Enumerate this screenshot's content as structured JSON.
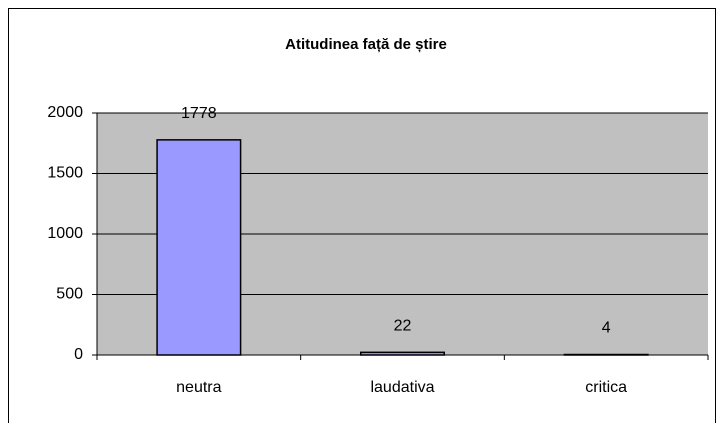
{
  "chart_data": {
    "type": "bar",
    "title": "Atitudinea față de știre",
    "categories": [
      "neutra",
      "laudativa",
      "critica"
    ],
    "values": [
      1778,
      22,
      4
    ],
    "color": "#9999ff",
    "ylim": [
      0,
      2000
    ],
    "yticks": [
      0,
      500,
      1000,
      1500,
      2000
    ],
    "grid": true
  }
}
